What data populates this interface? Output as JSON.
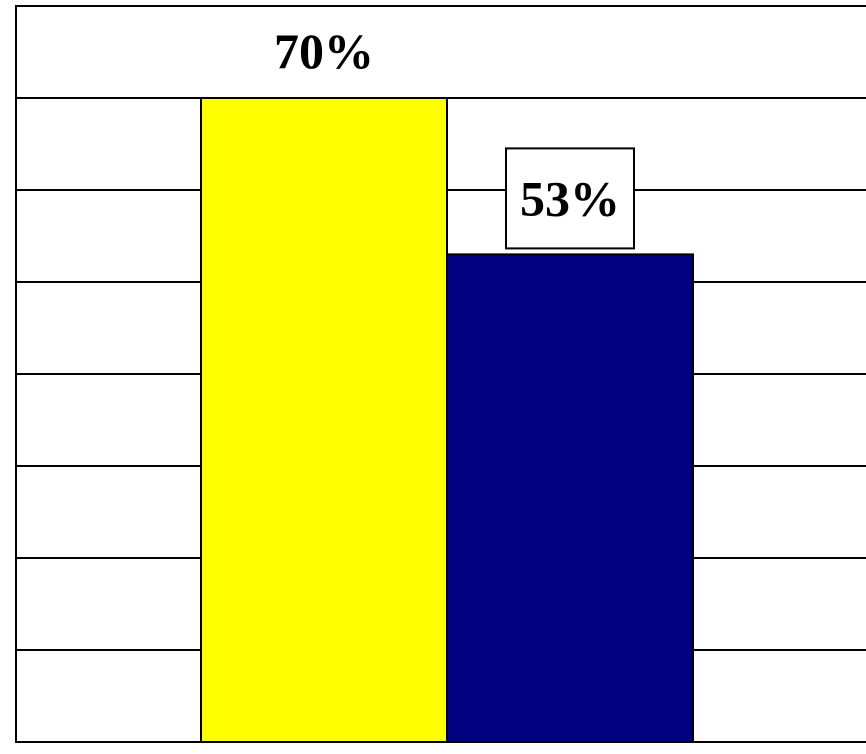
{
  "chart_data": {
    "type": "bar",
    "series": [
      {
        "values": [
          70
        ],
        "color": "#ffff00",
        "label": "70%",
        "label_boxed": false
      },
      {
        "values": [
          53
        ],
        "color": "#000080",
        "label": "53%",
        "label_boxed": true
      }
    ],
    "ylim": [
      0,
      80
    ],
    "grid": true,
    "gridline_step": 10,
    "legend": "none"
  }
}
